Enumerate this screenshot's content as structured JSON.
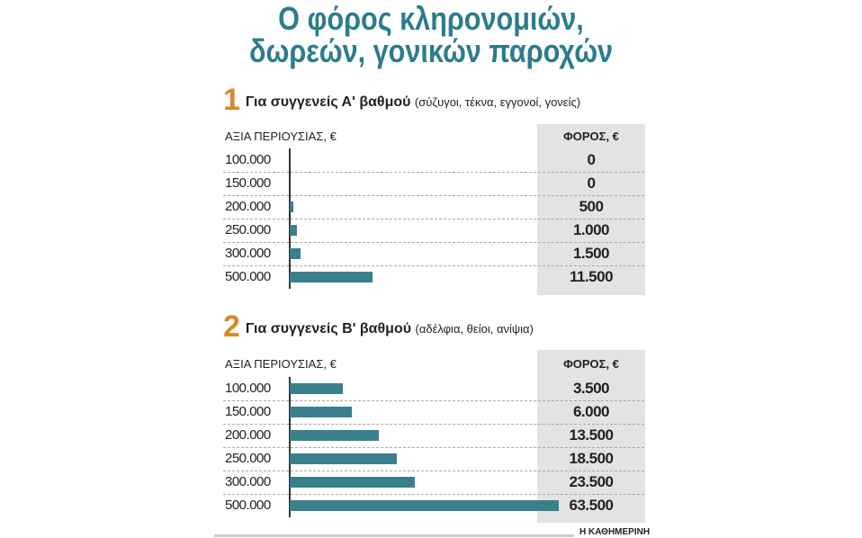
{
  "title": {
    "line1": "Ο φόρος κληρονομιών,",
    "line2": "δωρεών, γονικών παροχών"
  },
  "source": "Η ΚΑΘΗΜΕΡΙΝΗ",
  "chart_data": [
    {
      "type": "bar",
      "number": "1",
      "title": "Για συγγενείς Α' βαθμού",
      "subtitle": "(σύζυγοι, τέκνα, εγγονοί, γονείς)",
      "xlabel": "ΑΞΙΑ ΠΕΡΙΟΥΣΙΑΣ, €",
      "ylabel": "ΦΟΡΟΣ, €",
      "categories": [
        "100.000",
        "150.000",
        "200.000",
        "250.000",
        "300.000",
        "500.000"
      ],
      "values": [
        0,
        0,
        500,
        1000,
        1500,
        11500
      ],
      "value_labels": [
        "0",
        "0",
        "500",
        "1.000",
        "1.500",
        "11.500"
      ],
      "color": "#3a7f8c"
    },
    {
      "type": "bar",
      "number": "2",
      "title": "Για συγγενείς Β' βαθμού",
      "subtitle": "(αδέλφια, θείοι, ανίψια)",
      "xlabel": "ΑΞΙΑ ΠΕΡΙΟΥΣΙΑΣ, €",
      "ylabel": "ΦΟΡΟΣ, €",
      "categories": [
        "100.000",
        "150.000",
        "200.000",
        "250.000",
        "300.000",
        "500.000"
      ],
      "values": [
        3500,
        6000,
        13500,
        18500,
        23500,
        63500
      ],
      "value_labels": [
        "3.500",
        "6.000",
        "13.500",
        "18.500",
        "23.500",
        "63.500"
      ],
      "color": "#3a7f8c"
    }
  ]
}
